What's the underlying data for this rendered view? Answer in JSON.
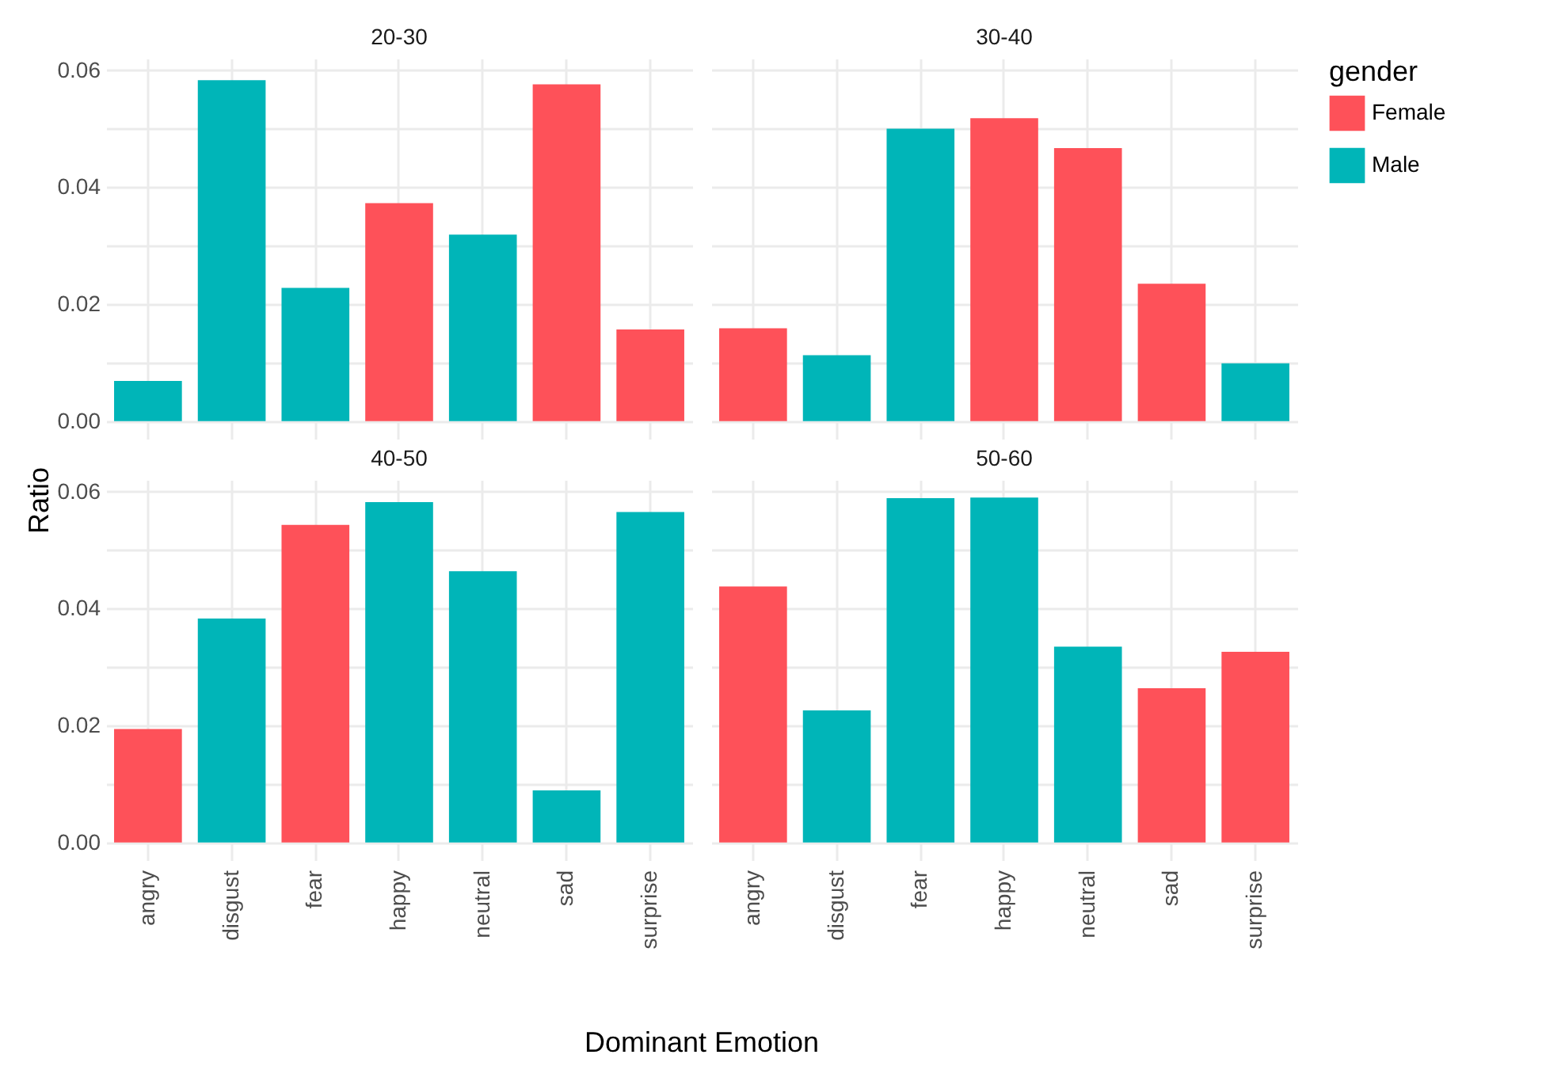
{
  "chart_data": [
    {
      "type": "bar",
      "title": "20-30",
      "ylabel": "Ratio",
      "legend_title": "gender",
      "legend": "right",
      "grid": true,
      "tick_labels": "y",
      "categories": [
        "angry",
        "disgust",
        "fear",
        "happy",
        "neutral",
        "sad",
        "surprise"
      ],
      "series": [
        {
          "name": "Female",
          "color": "#fe5159",
          "values": [
            null,
            null,
            null,
            0.0373,
            null,
            0.0576,
            0.0157
          ]
        },
        {
          "name": "Male",
          "color": "#00b5b8",
          "values": [
            0.0069,
            0.0583,
            0.0228,
            null,
            0.0319,
            null,
            null
          ]
        }
      ],
      "ylim": [
        -0.003,
        0.062
      ],
      "yticks": [
        {
          "value": 0,
          "label": "0.00"
        },
        {
          "value": 0.01,
          "label": null
        },
        {
          "value": 0.02,
          "label": "0.02"
        },
        {
          "value": 0.03,
          "label": null
        },
        {
          "value": 0.04,
          "label": "0.04"
        },
        {
          "value": 0.05,
          "label": null
        },
        {
          "value": 0.06,
          "label": "0.06"
        }
      ]
    },
    {
      "type": "bar",
      "title": "30-40",
      "grid": true,
      "tick_labels": false,
      "categories": [
        "angry",
        "disgust",
        "fear",
        "happy",
        "neutral",
        "sad",
        "surprise"
      ],
      "series": [
        {
          "name": "Female",
          "color": "#fe5159",
          "values": [
            0.0159,
            null,
            null,
            0.0518,
            0.0467,
            0.0235,
            null
          ]
        },
        {
          "name": "Male",
          "color": "#00b5b8",
          "values": [
            null,
            0.0113,
            0.05,
            null,
            null,
            null,
            0.0099
          ]
        }
      ],
      "ylim": [
        -0.003,
        0.062
      ],
      "yticks": [
        {
          "value": 0,
          "label": "0.00"
        },
        {
          "value": 0.01,
          "label": null
        },
        {
          "value": 0.02,
          "label": "0.02"
        },
        {
          "value": 0.03,
          "label": null
        },
        {
          "value": 0.04,
          "label": "0.04"
        },
        {
          "value": 0.05,
          "label": null
        },
        {
          "value": 0.06,
          "label": "0.06"
        }
      ]
    },
    {
      "type": "bar",
      "title": "40-50",
      "xlabel": "Dominant Emotion",
      "grid": true,
      "categories": [
        "angry",
        "disgust",
        "fear",
        "happy",
        "neutral",
        "sad",
        "surprise"
      ],
      "series": [
        {
          "name": "Female",
          "color": "#fe5159",
          "values": [
            0.0194,
            null,
            0.0543,
            null,
            null,
            null,
            null
          ]
        },
        {
          "name": "Male",
          "color": "#00b5b8",
          "values": [
            null,
            0.0383,
            null,
            0.0582,
            0.0464,
            0.0089,
            0.0565
          ]
        }
      ],
      "ylim": [
        -0.003,
        0.062
      ],
      "yticks": [
        {
          "value": 0,
          "label": "0.00"
        },
        {
          "value": 0.01,
          "label": null
        },
        {
          "value": 0.02,
          "label": "0.02"
        },
        {
          "value": 0.03,
          "label": null
        },
        {
          "value": 0.04,
          "label": "0.04"
        },
        {
          "value": 0.05,
          "label": null
        },
        {
          "value": 0.06,
          "label": "0.06"
        }
      ]
    },
    {
      "type": "bar",
      "title": "50-60",
      "grid": true,
      "tick_labels": "x",
      "categories": [
        "angry",
        "disgust",
        "fear",
        "happy",
        "neutral",
        "sad",
        "surprise"
      ],
      "series": [
        {
          "name": "Female",
          "color": "#fe5159",
          "values": [
            0.0438,
            null,
            null,
            null,
            null,
            0.0264,
            0.0326
          ]
        },
        {
          "name": "Male",
          "color": "#00b5b8",
          "values": [
            null,
            0.0226,
            0.0589,
            0.059,
            0.0335,
            null,
            null
          ]
        }
      ],
      "ylim": [
        -0.003,
        0.062
      ],
      "yticks": [
        {
          "value": 0,
          "label": "0.00"
        },
        {
          "value": 0.01,
          "label": null
        },
        {
          "value": 0.02,
          "label": "0.02"
        },
        {
          "value": 0.03,
          "label": null
        },
        {
          "value": 0.04,
          "label": "0.04"
        },
        {
          "value": 0.05,
          "label": null
        },
        {
          "value": 0.06,
          "label": "0.06"
        }
      ]
    }
  ]
}
